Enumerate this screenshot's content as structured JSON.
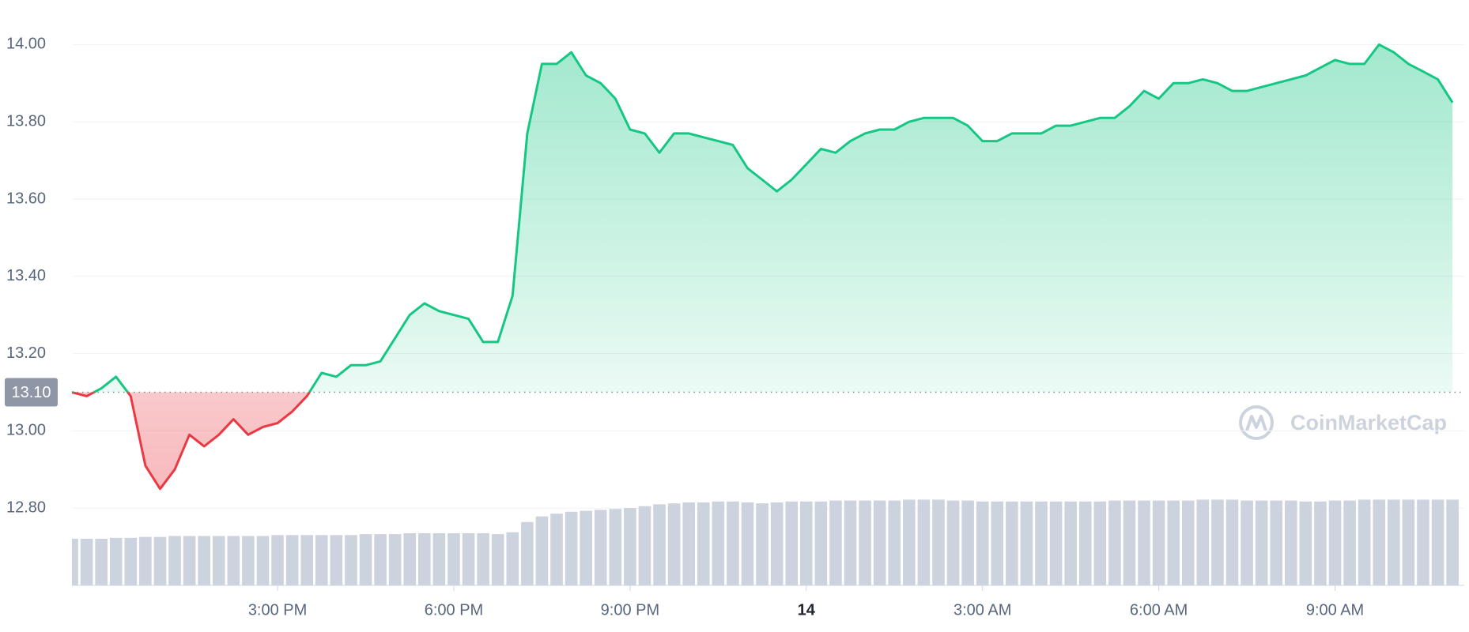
{
  "chart_data": {
    "type": "line",
    "x": [
      11.5,
      11.75,
      12,
      12.25,
      12.5,
      12.75,
      13,
      13.25,
      13.5,
      13.75,
      14,
      14.25,
      14.5,
      14.75,
      15,
      15.25,
      15.5,
      15.75,
      16,
      16.25,
      16.5,
      16.75,
      17,
      17.25,
      17.5,
      17.75,
      18,
      18.25,
      18.5,
      18.75,
      19,
      19.25,
      19.5,
      19.75,
      20,
      20.25,
      20.5,
      20.75,
      21,
      21.25,
      21.5,
      21.75,
      22,
      22.25,
      22.5,
      22.75,
      23,
      23.25,
      23.5,
      23.75,
      24,
      24.25,
      24.5,
      24.75,
      25,
      25.25,
      25.5,
      25.75,
      26,
      26.25,
      26.5,
      26.75,
      27,
      27.25,
      27.5,
      27.75,
      28,
      28.25,
      28.5,
      28.75,
      29,
      29.25,
      29.5,
      29.75,
      30,
      30.25,
      30.5,
      30.75,
      31,
      31.25,
      31.5,
      31.75,
      32,
      32.25,
      32.5,
      32.75,
      33,
      33.25,
      33.5,
      33.75,
      34,
      34.25,
      34.5,
      34.75,
      35
    ],
    "values": [
      13.1,
      13.09,
      13.11,
      13.14,
      13.09,
      12.91,
      12.85,
      12.9,
      12.99,
      12.96,
      12.99,
      13.03,
      12.99,
      13.01,
      13.02,
      13.05,
      13.09,
      13.15,
      13.14,
      13.17,
      13.17,
      13.18,
      13.24,
      13.3,
      13.33,
      13.31,
      13.3,
      13.29,
      13.23,
      13.23,
      13.35,
      13.77,
      13.95,
      13.95,
      13.98,
      13.92,
      13.9,
      13.86,
      13.78,
      13.77,
      13.72,
      13.77,
      13.77,
      13.76,
      13.75,
      13.74,
      13.68,
      13.65,
      13.62,
      13.65,
      13.69,
      13.73,
      13.72,
      13.75,
      13.77,
      13.78,
      13.78,
      13.8,
      13.81,
      13.81,
      13.81,
      13.79,
      13.75,
      13.75,
      13.77,
      13.77,
      13.77,
      13.79,
      13.79,
      13.8,
      13.81,
      13.81,
      13.84,
      13.88,
      13.86,
      13.9,
      13.9,
      13.91,
      13.9,
      13.88,
      13.88,
      13.89,
      13.9,
      13.91,
      13.92,
      13.94,
      13.96,
      13.95,
      13.95,
      14.0,
      13.98,
      13.95,
      13.93,
      13.91,
      13.85
    ],
    "color": "#16c784",
    "down_color": "#ea3943",
    "baseline": {
      "value": 13.1,
      "label": "13.10"
    },
    "volume": {
      "color": "#cdd3de",
      "values": [
        50,
        50,
        50,
        51,
        51,
        52,
        52,
        53,
        53,
        53,
        53,
        53,
        53,
        53,
        54,
        54,
        54,
        54,
        54,
        54,
        55,
        55,
        55,
        56,
        56,
        56,
        56,
        56,
        56,
        55,
        57,
        68,
        74,
        77,
        79,
        80,
        81,
        82,
        83,
        85,
        87,
        88,
        89,
        89,
        90,
        90,
        89,
        88,
        89,
        90,
        90,
        90,
        91,
        91,
        91,
        91,
        91,
        92,
        92,
        92,
        91,
        91,
        90,
        90,
        90,
        90,
        90,
        90,
        90,
        90,
        90,
        91,
        91,
        91,
        91,
        91,
        91,
        92,
        92,
        92,
        91,
        91,
        91,
        91,
        90,
        90,
        91,
        91,
        92,
        92,
        92,
        92,
        92,
        92,
        92
      ]
    },
    "xlim": [
      11.5,
      35.2
    ],
    "ylim": [
      12.6,
      14.1
    ],
    "y2lim": [
      0,
      100
    ],
    "xticks": [
      {
        "value": 15,
        "label": "3:00 PM"
      },
      {
        "value": 18,
        "label": "6:00 PM"
      },
      {
        "value": 21,
        "label": "9:00 PM"
      },
      {
        "value": 24,
        "label": "14"
      },
      {
        "value": 27,
        "label": "3:00 AM"
      },
      {
        "value": 30,
        "label": "6:00 AM"
      },
      {
        "value": 33,
        "label": "9:00 AM"
      }
    ],
    "yticks": [
      {
        "value": 12.8,
        "label": "12.80"
      },
      {
        "value": 13,
        "label": "13.00"
      },
      {
        "value": 13.2,
        "label": "13.20"
      },
      {
        "value": 13.4,
        "label": "13.40"
      },
      {
        "value": 13.6,
        "label": "13.60"
      },
      {
        "value": 13.8,
        "label": "13.80"
      },
      {
        "value": 14,
        "label": "14.00"
      }
    ],
    "grid": true,
    "watermark": "CoinMarketCap"
  }
}
